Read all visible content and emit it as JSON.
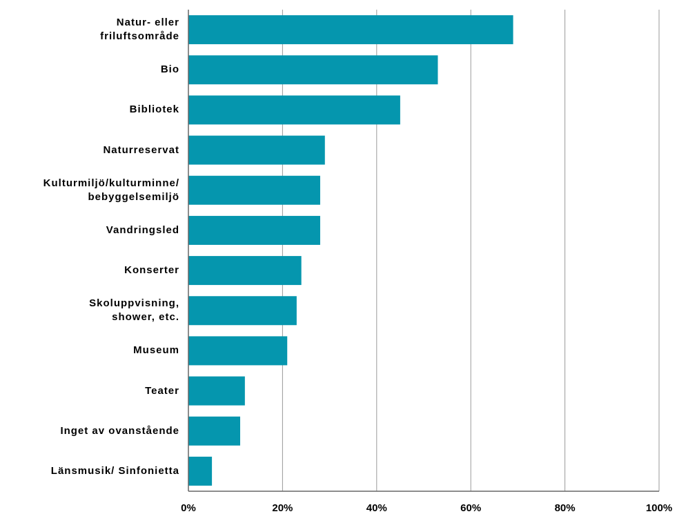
{
  "chart_data": {
    "type": "barh",
    "categories": [
      "Natur- eller\nfriluftsområde",
      "Bio",
      "Bibliotek",
      "Naturreservat",
      "Kulturmiljö/kulturminne/\nbebyggelsemiljö",
      "Vandringsled",
      "Konserter",
      "Skoluppvisning,\nshower, etc.",
      "Museum",
      "Teater",
      "Inget av ovanstående",
      "Länsmusik/ Sinfonietta"
    ],
    "values": [
      69,
      53,
      45,
      29,
      28,
      28,
      24,
      23,
      21,
      12,
      11,
      5
    ],
    "color": "#0596ae",
    "xlim": [
      0,
      100
    ],
    "xticks": [
      {
        "value": 0,
        "label": "0%"
      },
      {
        "value": 20,
        "label": "20%"
      },
      {
        "value": 40,
        "label": "40%"
      },
      {
        "value": 60,
        "label": "60%"
      },
      {
        "value": 80,
        "label": "80%"
      },
      {
        "value": 100,
        "label": "100%"
      }
    ],
    "grid": true
  }
}
